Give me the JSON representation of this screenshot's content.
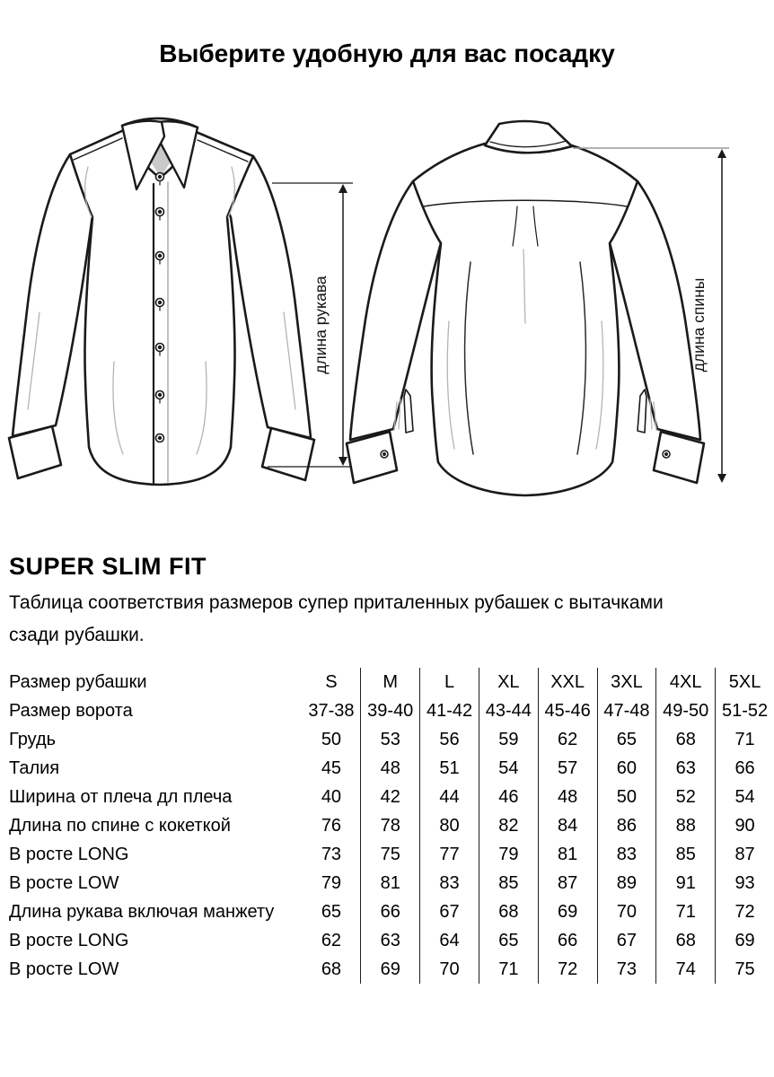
{
  "title": "Выберите удобную для вас посадку",
  "illustration": {
    "front_shirt": "shirt-front-technical-drawing",
    "back_shirt": "shirt-back-technical-drawing",
    "sleeve_length_label": "длина рукава",
    "back_length_label": "длина спины"
  },
  "fit": {
    "heading": "SUPER SLIM FIT",
    "description_line1": "Таблица соответствия размеров супер приталенных рубашек с вытачками",
    "description_line2": "сзади рубашки."
  },
  "table": {
    "rows": [
      {
        "label": "Размер рубашки",
        "values": [
          "S",
          "M",
          "L",
          "XL",
          "XXL",
          "3XL",
          "4XL",
          "5XL"
        ]
      },
      {
        "label": "Размер ворота",
        "values": [
          "37-38",
          "39-40",
          "41-42",
          "43-44",
          "45-46",
          "47-48",
          "49-50",
          "51-52"
        ]
      },
      {
        "label": "Грудь",
        "values": [
          "50",
          "53",
          "56",
          "59",
          "62",
          "65",
          "68",
          "71"
        ]
      },
      {
        "label": "Талия",
        "values": [
          "45",
          "48",
          "51",
          "54",
          "57",
          "60",
          "63",
          "66"
        ]
      },
      {
        "label": "Ширина от плеча дл плеча",
        "values": [
          "40",
          "42",
          "44",
          "46",
          "48",
          "50",
          "52",
          "54"
        ]
      },
      {
        "label": "Длина по спине с кокеткой",
        "values": [
          "76",
          "78",
          "80",
          "82",
          "84",
          "86",
          "88",
          "90"
        ]
      },
      {
        "label": "В росте LONG",
        "values": [
          "73",
          "75",
          "77",
          "79",
          "81",
          "83",
          "85",
          "87"
        ]
      },
      {
        "label": "В росте LOW",
        "values": [
          "79",
          "81",
          "83",
          "85",
          "87",
          "89",
          "91",
          "93"
        ]
      },
      {
        "label": "Длина рукава включая манжету",
        "values": [
          "65",
          "66",
          "67",
          "68",
          "69",
          "70",
          "71",
          "72"
        ]
      },
      {
        "label": "В росте LONG",
        "values": [
          "62",
          "63",
          "64",
          "65",
          "66",
          "67",
          "68",
          "69"
        ]
      },
      {
        "label": "В росте LOW",
        "values": [
          "68",
          "69",
          "70",
          "71",
          "72",
          "73",
          "74",
          "75"
        ]
      }
    ]
  },
  "colors": {
    "line": "#1a1a1a",
    "detail_gray": "#b4b4b4",
    "collar_inner": "#c9c9c9"
  }
}
